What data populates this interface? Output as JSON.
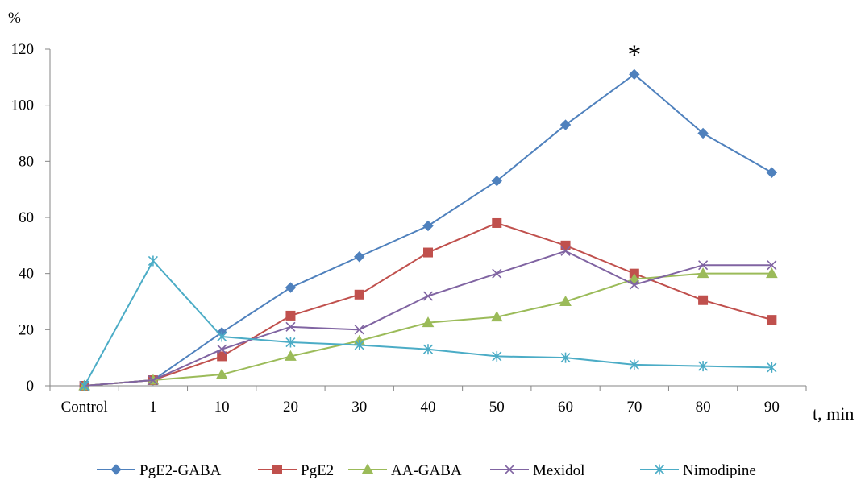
{
  "chart_data": {
    "type": "line",
    "title": "",
    "ylabel": "%",
    "xlabel": "t, min",
    "categories": [
      "Control",
      "1",
      "10",
      "20",
      "30",
      "40",
      "50",
      "60",
      "70",
      "80",
      "90"
    ],
    "ylim": [
      0,
      120
    ],
    "yticks": [
      "0",
      "20",
      "40",
      "60",
      "80",
      "100",
      "120"
    ],
    "grid": false,
    "legend_position": "bottom",
    "annotations": [
      {
        "text": "*",
        "category": "70",
        "value": 111
      }
    ],
    "series": [
      {
        "name": "PgE2-GABA",
        "color": "#4F81BD",
        "marker": "diamond",
        "values": [
          0,
          2,
          19,
          35,
          46,
          57,
          73,
          93,
          111,
          90,
          76
        ]
      },
      {
        "name": "PgE2",
        "color": "#C0504D",
        "marker": "square",
        "values": [
          0,
          2,
          10.5,
          25,
          32.5,
          47.5,
          58,
          50,
          40,
          30.5,
          23.5
        ]
      },
      {
        "name": "AA-GABA",
        "color": "#9BBB59",
        "marker": "triangle",
        "values": [
          0,
          2,
          4,
          10.5,
          16,
          22.5,
          24.5,
          30,
          38,
          40,
          40
        ]
      },
      {
        "name": "Mexidol",
        "color": "#8064A2",
        "marker": "x",
        "values": [
          0,
          2,
          13,
          21,
          20,
          32,
          40,
          48,
          36,
          43,
          43
        ]
      },
      {
        "name": "Nimodipine",
        "color": "#4BACC6",
        "marker": "star",
        "values": [
          0,
          44.5,
          17.5,
          15.5,
          14.5,
          13,
          10.5,
          10,
          7.5,
          7,
          6.5
        ]
      }
    ]
  }
}
